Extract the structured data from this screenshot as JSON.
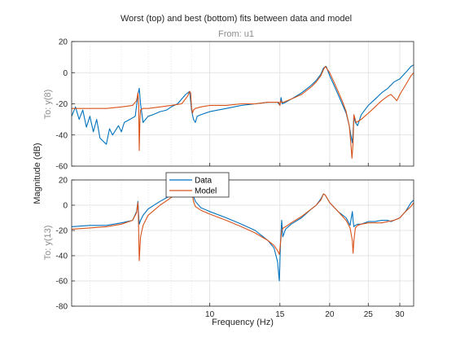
{
  "colors": {
    "data": "#0072BD",
    "model": "#D95319",
    "grid": "#dcdcdc",
    "axis": "#262626"
  },
  "chart_data": {
    "type": "line",
    "title": "Worst (top) and best (bottom) fits between data and model",
    "subtitle": "From: u1",
    "xlabel": "Frequency  (Hz)",
    "ylabel": "Magnitude (dB)",
    "xscale": "log",
    "xlim": [
      4.5,
      32.5
    ],
    "xticks": [
      10,
      15,
      20,
      25,
      30
    ],
    "xtick_labels": [
      "10",
      "15",
      "20",
      "25",
      "30"
    ],
    "legend": {
      "placement": "top-left of bottom panel",
      "entries": [
        "Data",
        "Model"
      ]
    },
    "grid": true,
    "panels": [
      {
        "name": "top",
        "ylabel": "To: y(8)",
        "ylim": [
          -60,
          20
        ],
        "yticks": [
          20,
          0,
          -20,
          -40,
          -60
        ],
        "series": [
          {
            "name": "Data",
            "x": [
              4.5,
              4.6,
              4.7,
              4.8,
              4.9,
              5.0,
              5.1,
              5.2,
              5.3,
              5.5,
              5.6,
              5.7,
              5.9,
              6.0,
              6.1,
              6.3,
              6.5,
              6.6,
              6.65,
              6.7,
              6.8,
              7.0,
              7.2,
              7.5,
              7.8,
              8.0,
              8.3,
              8.7,
              8.9,
              9.0,
              9.1,
              9.2,
              9.3,
              9.5,
              10.0,
              11.0,
              12.0,
              13.0,
              14.0,
              14.8,
              15.0,
              15.1,
              15.2,
              15.5,
              16.0,
              17.0,
              18.0,
              18.5,
              19.0,
              19.3,
              19.6,
              20.0,
              20.5,
              21.0,
              21.5,
              22.0,
              22.4,
              22.6,
              22.8,
              22.9,
              23.0,
              23.2,
              23.5,
              24.0,
              25.0,
              26.0,
              27.0,
              28.0,
              29.0,
              30.0,
              31.0,
              32.0,
              32.5
            ],
            "y": [
              -28,
              -22,
              -30,
              -24,
              -35,
              -28,
              -38,
              -30,
              -42,
              -46,
              -36,
              -40,
              -34,
              -38,
              -32,
              -30,
              -28,
              -14,
              -10,
              -20,
              -32,
              -28,
              -27,
              -25,
              -24,
              -22,
              -20,
              -14,
              -12,
              -24,
              -30,
              -32,
              -28,
              -27,
              -25,
              -23,
              -21,
              -20,
              -19,
              -19,
              -21,
              -16,
              -20,
              -19,
              -17,
              -13,
              -8,
              -5,
              -1,
              3,
              4,
              -2,
              -8,
              -14,
              -20,
              -26,
              -34,
              -40,
              -45,
              -38,
              -28,
              -32,
              -34,
              -27,
              -21,
              -17,
              -13,
              -10,
              -6,
              -4,
              0,
              4,
              5
            ]
          },
          {
            "name": "Model",
            "x": [
              4.5,
              5.0,
              5.5,
              6.0,
              6.4,
              6.55,
              6.6,
              6.63,
              6.65,
              6.68,
              6.7,
              6.8,
              7.0,
              7.5,
              8.0,
              8.5,
              8.8,
              8.9,
              8.95,
              9.0,
              9.05,
              9.1,
              9.2,
              9.5,
              10.0,
              11.0,
              12.0,
              13.0,
              14.0,
              14.9,
              15.0,
              15.05,
              15.1,
              15.3,
              16.0,
              17.0,
              18.0,
              18.5,
              19.0,
              19.3,
              19.5,
              20.0,
              20.5,
              21.0,
              21.5,
              22.0,
              22.4,
              22.6,
              22.75,
              22.9,
              23.0,
              23.3,
              24.0,
              25.0,
              26.0,
              27.0,
              28.0,
              28.5,
              29.0,
              29.5,
              30.0,
              31.0,
              32.0,
              32.5
            ],
            "y": [
              -23,
              -23,
              -23,
              -22,
              -21,
              -18,
              -13,
              -20,
              -50,
              -30,
              -24,
              -23,
              -23,
              -22,
              -21,
              -20,
              -15,
              -12,
              -13,
              -22,
              -26,
              -24,
              -23,
              -22,
              -21,
              -21,
              -20,
              -20,
              -19,
              -19,
              -21,
              -18,
              -19,
              -19,
              -17,
              -14,
              -9,
              -6,
              -2,
              2,
              4,
              0,
              -6,
              -12,
              -18,
              -25,
              -34,
              -45,
              -55,
              -45,
              -27,
              -32,
              -30,
              -26,
              -22,
              -18,
              -15,
              -14,
              -16,
              -18,
              -14,
              -8,
              -2,
              0
            ]
          }
        ]
      },
      {
        "name": "bottom",
        "ylabel": "To: y(13)",
        "ylim": [
          -80,
          20
        ],
        "yticks": [
          20,
          0,
          -20,
          -40,
          -60,
          -80
        ],
        "series": [
          {
            "name": "Data",
            "x": [
              4.5,
              5.0,
              5.5,
              6.0,
              6.4,
              6.55,
              6.6,
              6.62,
              6.65,
              6.7,
              6.8,
              7.0,
              7.5,
              8.0,
              8.5,
              8.8,
              9.0,
              9.1,
              9.2,
              9.5,
              10.0,
              11.0,
              12.0,
              13.0,
              14.0,
              14.5,
              14.8,
              14.95,
              15.05,
              15.15,
              15.25,
              15.5,
              16.0,
              17.0,
              18.0,
              18.5,
              19.0,
              19.3,
              19.5,
              20.0,
              21.0,
              22.0,
              22.5,
              22.8,
              22.9,
              23.0,
              23.2,
              23.5,
              24.0,
              25.0,
              26.0,
              27.0,
              28.0,
              28.5,
              29.0,
              30.0,
              31.0,
              32.0,
              32.5
            ],
            "y": [
              -17,
              -16,
              -16,
              -14,
              -12,
              -5,
              3,
              -5,
              -15,
              -12,
              -8,
              -3,
              3,
              8,
              13,
              18,
              12,
              7,
              3,
              -2,
              -5,
              -10,
              -15,
              -20,
              -28,
              -34,
              -45,
              -60,
              -30,
              -12,
              -25,
              -19,
              -15,
              -10,
              -3,
              0,
              5,
              9,
              8,
              2,
              -5,
              -10,
              -16,
              -5,
              -12,
              -17,
              -16,
              -15,
              -15,
              -13,
              -13,
              -12,
              -12,
              -13,
              -12,
              -10,
              -5,
              2,
              4
            ]
          },
          {
            "name": "Model",
            "x": [
              4.5,
              5.0,
              5.5,
              6.0,
              6.4,
              6.55,
              6.6,
              6.62,
              6.65,
              6.7,
              6.8,
              7.0,
              7.5,
              8.0,
              8.5,
              8.8,
              9.0,
              9.05,
              9.1,
              9.2,
              9.5,
              10.0,
              11.0,
              12.0,
              13.0,
              14.0,
              14.5,
              14.8,
              14.95,
              15.05,
              15.15,
              15.3,
              15.5,
              16.0,
              17.0,
              18.0,
              18.5,
              19.0,
              19.3,
              19.5,
              20.0,
              21.0,
              22.0,
              22.5,
              22.8,
              22.9,
              23.0,
              23.2,
              23.5,
              24.0,
              25.0,
              26.0,
              27.0,
              28.0,
              29.0,
              30.0,
              31.0,
              32.0,
              32.5
            ],
            "y": [
              -19,
              -18,
              -17,
              -15,
              -12,
              -6,
              2,
              -10,
              -44,
              -25,
              -16,
              -8,
              0,
              6,
              11,
              16,
              17,
              8,
              3,
              -1,
              -4,
              -7,
              -12,
              -17,
              -22,
              -28,
              -32,
              -36,
              -39,
              -30,
              -20,
              -18,
              -17,
              -14,
              -9,
              -3,
              0,
              4,
              9,
              8,
              2,
              -5,
              -12,
              -18,
              -28,
              -38,
              -28,
              -18,
              -16,
              -15,
              -14,
              -14,
              -14,
              -13,
              -12,
              -10,
              -5,
              -1,
              2
            ]
          }
        ]
      }
    ]
  }
}
